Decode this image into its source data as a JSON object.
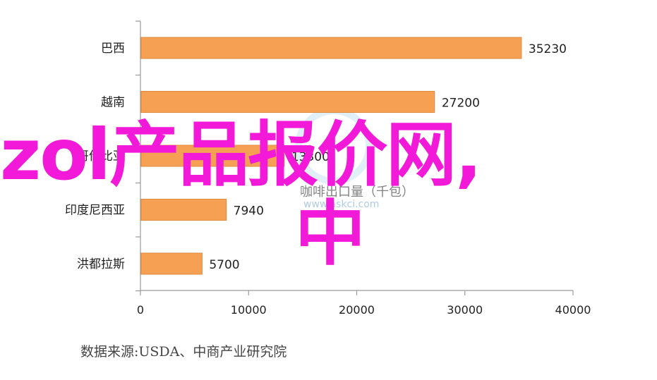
{
  "chart_data": {
    "type": "bar",
    "orientation": "horizontal",
    "categories": [
      "巴西",
      "越南",
      "哥伦比亚",
      "印度尼西亚",
      "洪都拉斯"
    ],
    "values": [
      35230,
      27200,
      13300,
      7940,
      5700
    ],
    "value_labels": [
      "35230",
      "27200",
      "13300",
      "7940",
      "5700"
    ],
    "xlim": [
      0,
      40000
    ],
    "xticks": [
      0,
      10000,
      20000,
      30000,
      40000
    ],
    "xtick_labels": [
      "0",
      "10000",
      "20000",
      "30000",
      "40000"
    ],
    "bar_color": "#f5a053",
    "bar_edge_color": "#e08a3c",
    "grid": false,
    "legend": "none"
  },
  "source": "数据来源:USDA、中商产业研究院",
  "watermark": {
    "subtitle": "咖啡出口量（千包）",
    "url": "www.askci.com",
    "overlay_line1": "zol产品报价网,",
    "overlay_line2": "中"
  }
}
